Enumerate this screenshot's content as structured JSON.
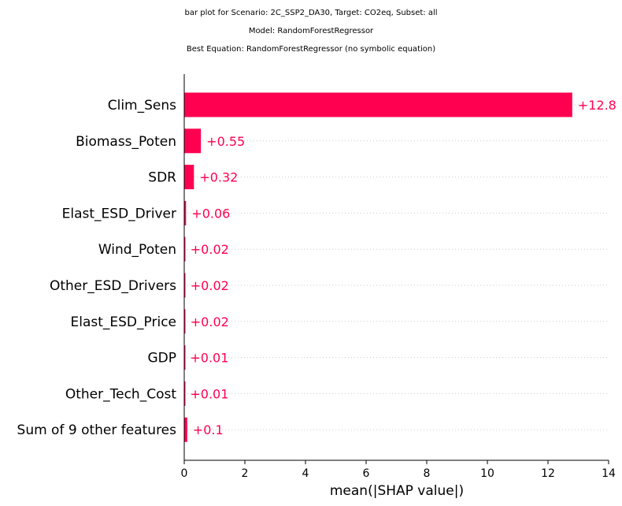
{
  "chart_data": {
    "type": "bar",
    "orientation": "horizontal",
    "title_lines": [
      "bar plot for Scenario: 2C_SSP2_DA30, Target: CO2eq, Subset: all",
      "Model: RandomForestRegressor",
      "Best Equation: RandomForestRegressor (no symbolic equation)"
    ],
    "categories": [
      "Clim_Sens",
      "Biomass_Poten",
      "SDR",
      "Elast_ESD_Driver",
      "Wind_Poten",
      "Other_ESD_Drivers",
      "Elast_ESD_Price",
      "GDP",
      "Other_Tech_Cost",
      "Sum of 9 other features"
    ],
    "values": [
      12.8,
      0.55,
      0.32,
      0.06,
      0.02,
      0.02,
      0.02,
      0.01,
      0.01,
      0.1
    ],
    "value_labels": [
      "+12.8",
      "+0.55",
      "+0.32",
      "+0.06",
      "+0.02",
      "+0.02",
      "+0.02",
      "+0.01",
      "+0.01",
      "+0.1"
    ],
    "xlabel": "mean(|SHAP value|)",
    "xlim": [
      0,
      14
    ],
    "xticks": [
      "0",
      "2",
      "4",
      "6",
      "8",
      "10",
      "12",
      "14"
    ],
    "grid": "dotted horizontal row guides",
    "colors": {
      "bar": "#ff0051",
      "label": "#ff0051",
      "guide": "#cccccc",
      "axis": "#000000"
    }
  }
}
